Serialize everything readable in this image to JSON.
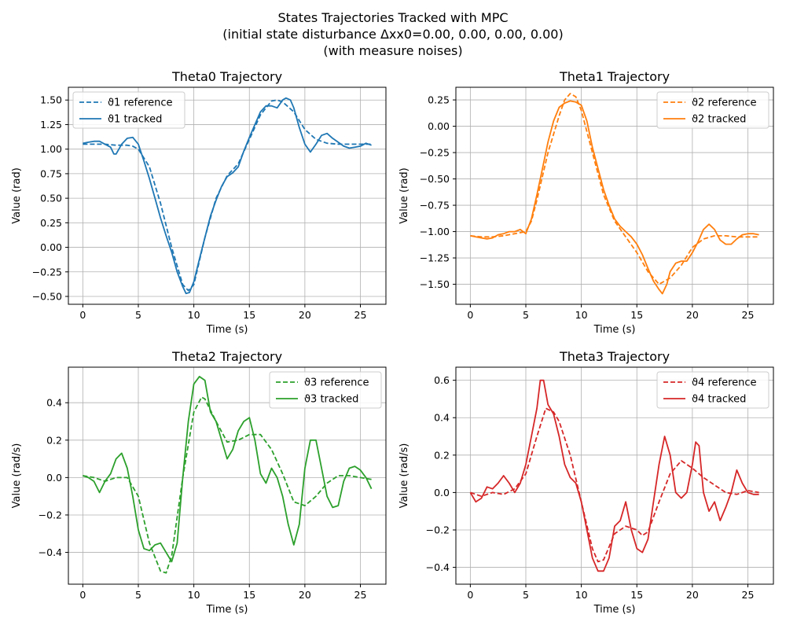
{
  "figure": {
    "title_line1": "States Trajectories Tracked with MPC",
    "title_line2": "(initial state disturbance Δxx0=0.00, 0.00, 0.00, 0.00)",
    "title_line3": "(with measure noises)"
  },
  "chart_data": [
    {
      "type": "line",
      "title": "Theta0 Trajectory",
      "xlabel": "Time (s)",
      "ylabel": "Value (rad)",
      "xlim": [
        -1.3,
        27.3
      ],
      "ylim": [
        -0.58,
        1.63
      ],
      "xticks": [
        0,
        5,
        10,
        15,
        20,
        25
      ],
      "yticks": [
        -0.5,
        -0.25,
        0.0,
        0.25,
        0.5,
        0.75,
        1.0,
        1.25,
        1.5
      ],
      "ytick_labels": [
        "−0.50",
        "−0.25",
        "0.00",
        "0.25",
        "0.50",
        "0.75",
        "1.00",
        "1.25",
        "1.50"
      ],
      "xtick_labels": [
        "0",
        "5",
        "10",
        "15",
        "20",
        "25"
      ],
      "grid": true,
      "legend_position": "top-left",
      "color": "#1f77b4",
      "series": [
        {
          "name": "ϑ1 reference",
          "style": "dashed",
          "x": [
            0,
            1,
            2,
            3,
            4,
            4.5,
            5,
            6,
            7,
            8,
            9,
            9.5,
            10,
            11,
            12,
            13,
            14,
            15,
            16,
            17,
            17.5,
            18,
            19,
            20,
            21,
            22,
            23,
            24,
            25,
            26
          ],
          "y": [
            1.05,
            1.05,
            1.05,
            1.04,
            1.04,
            1.03,
            1.0,
            0.82,
            0.45,
            0.0,
            -0.38,
            -0.44,
            -0.38,
            0.1,
            0.5,
            0.73,
            0.85,
            1.1,
            1.35,
            1.49,
            1.5,
            1.48,
            1.38,
            1.2,
            1.1,
            1.06,
            1.05,
            1.05,
            1.05,
            1.05
          ]
        },
        {
          "name": "ϑ1 tracked",
          "style": "solid",
          "x": [
            0,
            0.5,
            1,
            1.5,
            2,
            2.5,
            2.8,
            3,
            3.5,
            4,
            4.5,
            5,
            5.5,
            6,
            6.5,
            7,
            7.5,
            8,
            8.5,
            9,
            9.3,
            9.6,
            10,
            10.5,
            11,
            11.5,
            12,
            12.5,
            13,
            13.5,
            14,
            14.5,
            15,
            15.5,
            16,
            16.5,
            17,
            17.5,
            18,
            18.3,
            18.7,
            19,
            19.5,
            20,
            20.5,
            21,
            21.5,
            22,
            22.5,
            23,
            23.5,
            24,
            24.5,
            25,
            25.5,
            26
          ],
          "y": [
            1.06,
            1.07,
            1.08,
            1.08,
            1.05,
            1.02,
            0.95,
            0.95,
            1.05,
            1.11,
            1.12,
            1.05,
            0.88,
            0.7,
            0.5,
            0.3,
            0.12,
            -0.05,
            -0.25,
            -0.4,
            -0.47,
            -0.46,
            -0.35,
            -0.12,
            0.1,
            0.32,
            0.48,
            0.62,
            0.72,
            0.76,
            0.82,
            0.98,
            1.12,
            1.25,
            1.38,
            1.44,
            1.44,
            1.42,
            1.5,
            1.52,
            1.5,
            1.42,
            1.22,
            1.05,
            0.97,
            1.05,
            1.14,
            1.16,
            1.11,
            1.07,
            1.03,
            1.01,
            1.02,
            1.03,
            1.06,
            1.04
          ]
        }
      ]
    },
    {
      "type": "line",
      "title": "Theta1 Trajectory",
      "xlabel": "Time (s)",
      "ylabel": "Value (rad)",
      "xlim": [
        -1.3,
        27.3
      ],
      "ylim": [
        -1.69,
        0.37
      ],
      "xticks": [
        0,
        5,
        10,
        15,
        20,
        25
      ],
      "yticks": [
        -1.5,
        -1.25,
        -1.0,
        -0.75,
        -0.5,
        -0.25,
        0.0,
        0.25
      ],
      "ytick_labels": [
        "−1.50",
        "−1.25",
        "−1.00",
        "−0.75",
        "−0.50",
        "−0.25",
        "0.00",
        "0.25"
      ],
      "xtick_labels": [
        "0",
        "5",
        "10",
        "15",
        "20",
        "25"
      ],
      "grid": true,
      "legend_position": "top-right",
      "color": "#ff7f0e",
      "series": [
        {
          "name": "ϑ2 reference",
          "style": "dashed",
          "x": [
            0,
            1,
            2,
            3,
            4,
            5,
            5.5,
            6,
            7,
            8,
            8.5,
            9,
            9.5,
            10,
            11,
            12,
            13,
            14,
            15,
            16,
            17,
            18,
            19,
            20,
            21,
            22,
            23,
            24,
            25,
            26
          ],
          "y": [
            -1.04,
            -1.05,
            -1.05,
            -1.04,
            -1.02,
            -1.0,
            -0.9,
            -0.7,
            -0.25,
            0.1,
            0.25,
            0.31,
            0.28,
            0.15,
            -0.25,
            -0.65,
            -0.9,
            -1.05,
            -1.2,
            -1.38,
            -1.5,
            -1.44,
            -1.32,
            -1.15,
            -1.07,
            -1.04,
            -1.04,
            -1.05,
            -1.05,
            -1.05
          ]
        },
        {
          "name": "ϑ2 tracked",
          "style": "solid",
          "x": [
            0,
            0.5,
            1,
            1.5,
            2,
            2.5,
            3,
            3.5,
            4,
            4.5,
            5,
            5.5,
            6,
            6.5,
            7,
            7.5,
            8,
            8.5,
            9,
            9.5,
            10,
            10.5,
            11,
            11.5,
            12,
            12.5,
            13,
            13.5,
            14,
            14.5,
            15,
            15.5,
            16,
            16.5,
            17,
            17.3,
            17.7,
            18,
            18.5,
            19,
            19.5,
            20,
            20.5,
            21,
            21.5,
            22,
            22.5,
            23,
            23.5,
            24,
            24.5,
            25,
            25.5,
            26
          ],
          "y": [
            -1.04,
            -1.05,
            -1.06,
            -1.07,
            -1.06,
            -1.03,
            -1.02,
            -1.0,
            -1.0,
            -0.98,
            -1.02,
            -0.88,
            -0.65,
            -0.4,
            -0.15,
            0.05,
            0.18,
            0.22,
            0.24,
            0.23,
            0.2,
            0.05,
            -0.2,
            -0.4,
            -0.6,
            -0.75,
            -0.88,
            -0.95,
            -1.0,
            -1.05,
            -1.12,
            -1.22,
            -1.35,
            -1.47,
            -1.55,
            -1.59,
            -1.5,
            -1.38,
            -1.3,
            -1.28,
            -1.28,
            -1.2,
            -1.1,
            -0.98,
            -0.93,
            -0.98,
            -1.08,
            -1.12,
            -1.12,
            -1.07,
            -1.03,
            -1.02,
            -1.02,
            -1.03
          ]
        }
      ]
    },
    {
      "type": "line",
      "title": "Theta2 Trajectory",
      "xlabel": "Time (s)",
      "ylabel": "Value (rad/s)",
      "xlim": [
        -1.3,
        27.3
      ],
      "ylim": [
        -0.57,
        0.59
      ],
      "xticks": [
        0,
        5,
        10,
        15,
        20,
        25
      ],
      "yticks": [
        -0.4,
        -0.2,
        0.0,
        0.2,
        0.4
      ],
      "ytick_labels": [
        "−0.4",
        "−0.2",
        "0.0",
        "0.2",
        "0.4"
      ],
      "xtick_labels": [
        "0",
        "5",
        "10",
        "15",
        "20",
        "25"
      ],
      "grid": true,
      "legend_position": "top-right",
      "color": "#2ca02c",
      "series": [
        {
          "name": "ϑ3 reference",
          "style": "dashed",
          "x": [
            0,
            1,
            2,
            3,
            4,
            5,
            6,
            7,
            7.5,
            8,
            9,
            10,
            10.7,
            11,
            12,
            13,
            14,
            15,
            16,
            17,
            18,
            19,
            20,
            21,
            22,
            23,
            24,
            25,
            26
          ],
          "y": [
            0.01,
            0.0,
            -0.02,
            0.0,
            0.0,
            -0.1,
            -0.35,
            -0.5,
            -0.51,
            -0.42,
            0.0,
            0.35,
            0.43,
            0.42,
            0.3,
            0.19,
            0.2,
            0.23,
            0.23,
            0.15,
            0.02,
            -0.13,
            -0.15,
            -0.1,
            -0.03,
            0.01,
            0.01,
            0.0,
            -0.01
          ]
        },
        {
          "name": "ϑ3 tracked",
          "style": "solid",
          "x": [
            0,
            0.5,
            1,
            1.5,
            2,
            2.5,
            3,
            3.5,
            4,
            4.5,
            5,
            5.5,
            6,
            6.5,
            7,
            7.5,
            8,
            8.5,
            9,
            9.5,
            10,
            10.5,
            11,
            11.5,
            12,
            12.5,
            13,
            13.5,
            14,
            14.5,
            15,
            15.5,
            16,
            16.5,
            17,
            17.5,
            18,
            18.5,
            19,
            19.5,
            20,
            20.5,
            21,
            21.5,
            22,
            22.5,
            23,
            23.5,
            24,
            24.5,
            25,
            25.5,
            26
          ],
          "y": [
            0.01,
            0.0,
            -0.02,
            -0.08,
            -0.02,
            0.02,
            0.1,
            0.13,
            0.05,
            -0.1,
            -0.28,
            -0.38,
            -0.39,
            -0.36,
            -0.35,
            -0.4,
            -0.45,
            -0.35,
            0.0,
            0.3,
            0.5,
            0.54,
            0.52,
            0.35,
            0.3,
            0.2,
            0.1,
            0.15,
            0.25,
            0.3,
            0.32,
            0.2,
            0.02,
            -0.03,
            0.05,
            0.0,
            -0.1,
            -0.25,
            -0.36,
            -0.25,
            0.05,
            0.2,
            0.2,
            0.05,
            -0.1,
            -0.16,
            -0.15,
            -0.02,
            0.05,
            0.06,
            0.04,
            0.0,
            -0.06
          ]
        }
      ]
    },
    {
      "type": "line",
      "title": "Theta3 Trajectory",
      "xlabel": "Time (s)",
      "ylabel": "Value (rad/s)",
      "xlim": [
        -1.3,
        27.3
      ],
      "ylim": [
        -0.49,
        0.67
      ],
      "xticks": [
        0,
        5,
        10,
        15,
        20,
        25
      ],
      "yticks": [
        -0.4,
        -0.2,
        0.0,
        0.2,
        0.4,
        0.6
      ],
      "ytick_labels": [
        "−0.4",
        "−0.2",
        "0.0",
        "0.2",
        "0.4",
        "0.6"
      ],
      "xtick_labels": [
        "0",
        "5",
        "10",
        "15",
        "20",
        "25"
      ],
      "grid": true,
      "legend_position": "top-right",
      "color": "#d62728",
      "series": [
        {
          "name": "ϑ4 reference",
          "style": "dashed",
          "x": [
            0,
            1,
            2,
            3,
            4,
            5,
            6,
            6.8,
            7.5,
            8,
            9,
            10,
            11,
            11.5,
            12,
            13,
            14,
            15,
            15.5,
            16,
            17,
            18,
            19,
            20,
            21,
            22,
            23,
            24,
            25,
            26
          ],
          "y": [
            0.0,
            -0.02,
            0.0,
            -0.01,
            0.02,
            0.1,
            0.3,
            0.45,
            0.43,
            0.38,
            0.2,
            -0.05,
            -0.3,
            -0.37,
            -0.36,
            -0.22,
            -0.18,
            -0.2,
            -0.23,
            -0.21,
            -0.05,
            0.1,
            0.17,
            0.13,
            0.08,
            0.04,
            0.0,
            -0.01,
            0.01,
            0.0
          ]
        },
        {
          "name": "ϑ4 tracked",
          "style": "solid",
          "x": [
            0,
            0.5,
            1,
            1.5,
            2,
            2.5,
            3,
            3.5,
            4,
            4.5,
            5,
            5.5,
            6,
            6.3,
            6.6,
            7,
            7.5,
            8,
            8.5,
            9,
            9.5,
            10,
            10.5,
            11,
            11.5,
            12,
            12.5,
            13,
            13.5,
            14,
            14.5,
            15,
            15.5,
            16,
            16.5,
            17,
            17.5,
            18,
            18.5,
            19,
            19.5,
            20,
            20.3,
            20.6,
            21,
            21.5,
            22,
            22.5,
            23,
            23.5,
            24,
            24.5,
            25,
            25.5,
            26
          ],
          "y": [
            0.0,
            -0.05,
            -0.03,
            0.03,
            0.02,
            0.05,
            0.09,
            0.05,
            0.0,
            0.05,
            0.15,
            0.3,
            0.45,
            0.6,
            0.6,
            0.47,
            0.42,
            0.3,
            0.15,
            0.08,
            0.05,
            -0.05,
            -0.2,
            -0.35,
            -0.42,
            -0.42,
            -0.35,
            -0.18,
            -0.15,
            -0.05,
            -0.2,
            -0.3,
            -0.32,
            -0.25,
            -0.05,
            0.15,
            0.3,
            0.2,
            0.0,
            -0.03,
            0.0,
            0.15,
            0.27,
            0.25,
            0.0,
            -0.1,
            -0.05,
            -0.15,
            -0.08,
            0.0,
            0.12,
            0.05,
            0.0,
            -0.01,
            -0.01
          ]
        }
      ]
    }
  ]
}
